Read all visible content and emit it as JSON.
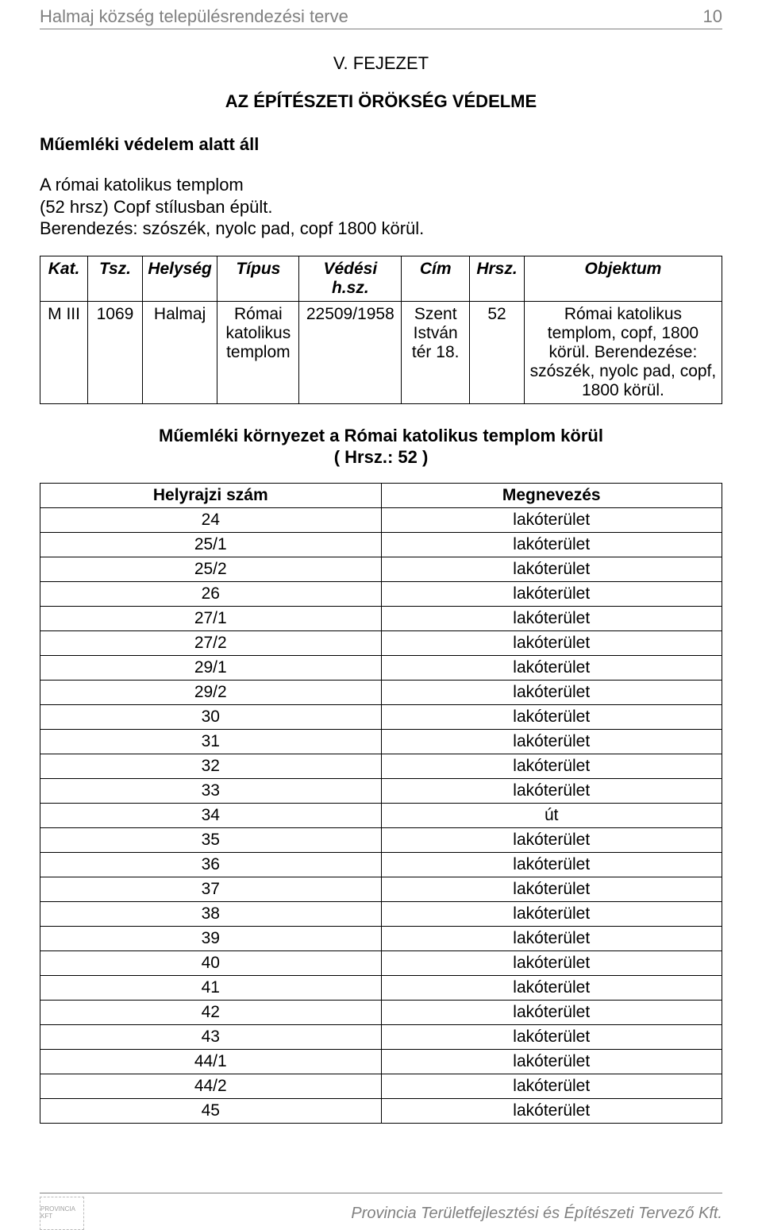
{
  "colors": {
    "text": "#000000",
    "muted": "#808080",
    "border": "#000000",
    "background": "#ffffff"
  },
  "header": {
    "title": "Halmaj község településrendezési terve",
    "page_number": "10"
  },
  "chapter": {
    "title": "V. FEJEZET",
    "subtitle": "AZ ÉPÍTÉSZETI ÖRÖKSÉG VÉDELME"
  },
  "subheading": "Műemléki védelem alatt áll",
  "body_lines": [
    "A római katolikus templom",
    "(52 hrsz) Copf stílusban épült.",
    "Berendezés: szószék, nyolc pad, copf 1800 körül."
  ],
  "table1": {
    "headers": [
      "Kat.",
      "Tsz.",
      "Helység",
      "Típus",
      "Védési h.sz.",
      "Cím",
      "Hrsz.",
      "Objektum"
    ],
    "row": {
      "kat": "M III",
      "tsz": "1069",
      "helyseg": "Halmaj",
      "tipus": "Római katolikus templom",
      "vedesi": "22509/1958",
      "cim": "Szent István tér 18.",
      "hrsz": "52",
      "objektum": "Római katolikus templom, copf, 1800 körül. Berendezése: szószék, nyolc pad, copf, 1800 körül."
    },
    "col_widths": [
      "7%",
      "8%",
      "11%",
      "12%",
      "15%",
      "10%",
      "8%",
      "29%"
    ]
  },
  "section_heading_line1": "Műemléki környezet a Római katolikus templom körül",
  "section_heading_line2": "( Hrsz.: 52 )",
  "table2": {
    "headers": [
      "Helyrajzi szám",
      "Megnevezés"
    ],
    "rows": [
      [
        "24",
        "lakóterület"
      ],
      [
        "25/1",
        "lakóterület"
      ],
      [
        "25/2",
        "lakóterület"
      ],
      [
        "26",
        "lakóterület"
      ],
      [
        "27/1",
        "lakóterület"
      ],
      [
        "27/2",
        "lakóterület"
      ],
      [
        "29/1",
        "lakóterület"
      ],
      [
        "29/2",
        "lakóterület"
      ],
      [
        "30",
        "lakóterület"
      ],
      [
        "31",
        "lakóterület"
      ],
      [
        "32",
        "lakóterület"
      ],
      [
        "33",
        "lakóterület"
      ],
      [
        "34",
        "út"
      ],
      [
        "35",
        "lakóterület"
      ],
      [
        "36",
        "lakóterület"
      ],
      [
        "37",
        "lakóterület"
      ],
      [
        "38",
        "lakóterület"
      ],
      [
        "39",
        "lakóterület"
      ],
      [
        "40",
        "lakóterület"
      ],
      [
        "41",
        "lakóterület"
      ],
      [
        "42",
        "lakóterület"
      ],
      [
        "43",
        "lakóterület"
      ],
      [
        "44/1",
        "lakóterület"
      ],
      [
        "44/2",
        "lakóterület"
      ],
      [
        "45",
        "lakóterület"
      ]
    ]
  },
  "footer": {
    "logo_text": "PROVINCIA KFT",
    "company": "Provincia Területfejlesztési és Építészeti Tervező Kft."
  }
}
